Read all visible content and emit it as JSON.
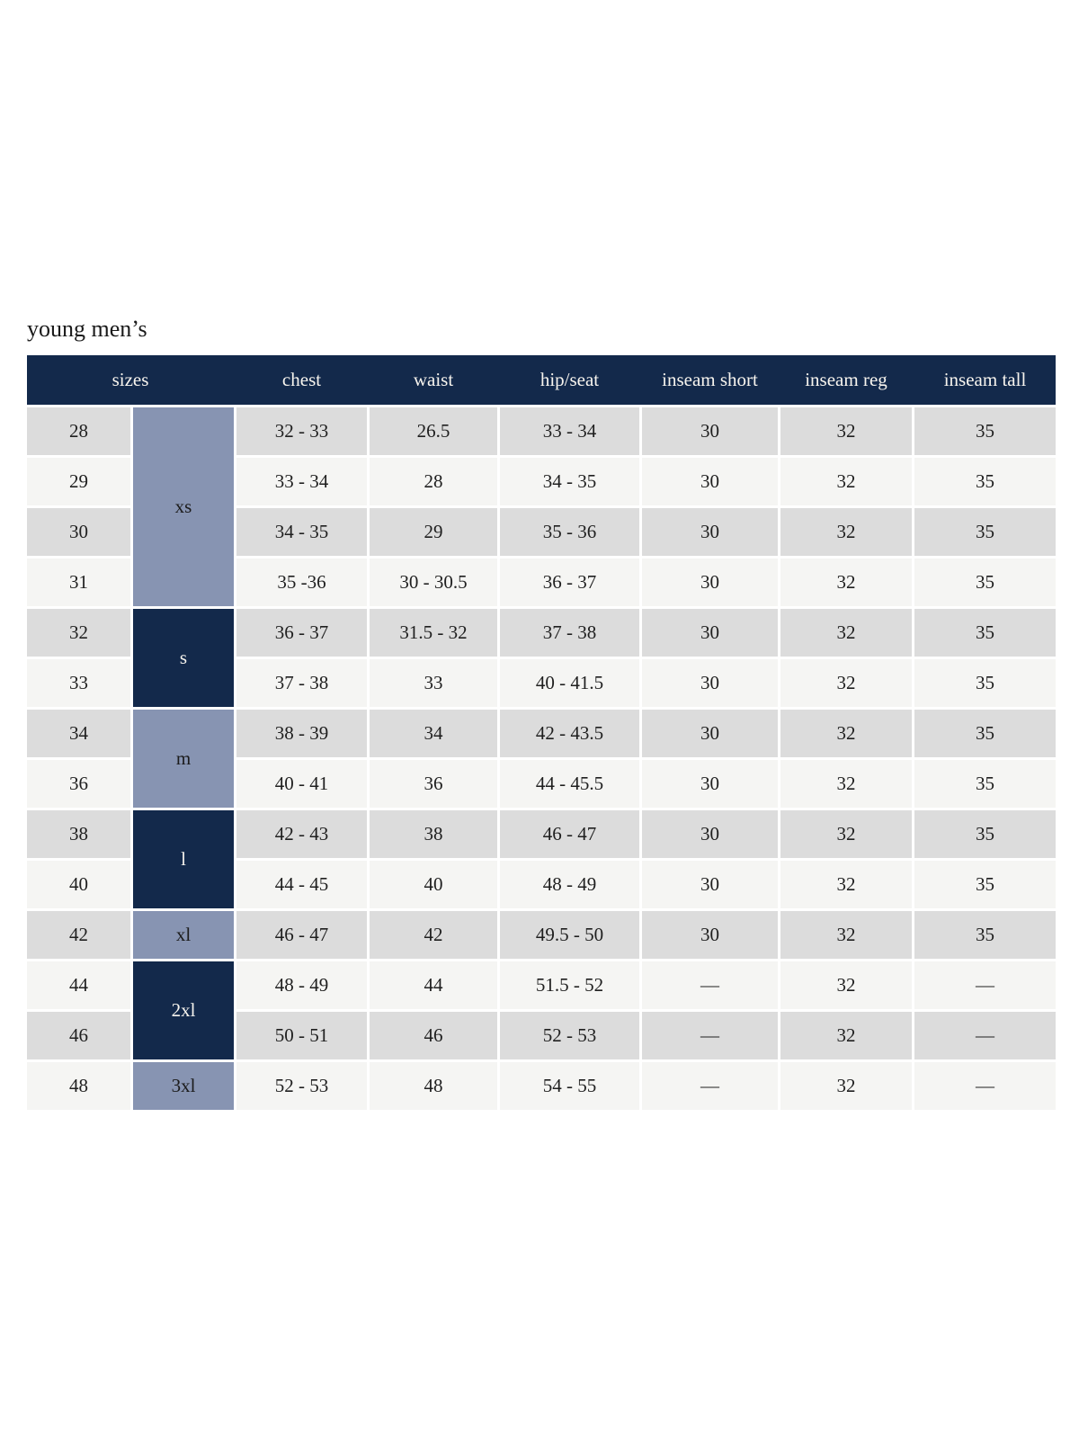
{
  "page": {
    "title": "young men’s"
  },
  "colors": {
    "header_navy": "#13294b",
    "group_dark_navy": "#13294b",
    "group_slate_blue": "#8794b2",
    "row_gray": "#dcdcdc",
    "row_offwhite": "#f5f5f3",
    "header_text": "#f7f4ee",
    "body_text": "#1f1f1f"
  },
  "table": {
    "header": {
      "sizes": "sizes",
      "chest": "chest",
      "waist": "waist",
      "hip_seat": "hip/seat",
      "inseam_short": "inseam short",
      "inseam_reg": "inseam reg",
      "inseam_tall": "inseam tall"
    },
    "size_groups": [
      {
        "label": "xs",
        "span": 4,
        "variant": "light"
      },
      {
        "label": "s",
        "span": 2,
        "variant": "dark"
      },
      {
        "label": "m",
        "span": 2,
        "variant": "light"
      },
      {
        "label": "l",
        "span": 2,
        "variant": "dark"
      },
      {
        "label": "xl",
        "span": 1,
        "variant": "light"
      },
      {
        "label": "2xl",
        "span": 2,
        "variant": "dark"
      },
      {
        "label": "3xl",
        "span": 1,
        "variant": "light"
      }
    ],
    "rows": [
      {
        "size": "28",
        "chest": "32 - 33",
        "waist": "26.5",
        "hip_seat": "33 - 34",
        "inseam_short": "30",
        "inseam_reg": "32",
        "inseam_tall": "35"
      },
      {
        "size": "29",
        "chest": "33 - 34",
        "waist": "28",
        "hip_seat": "34 - 35",
        "inseam_short": "30",
        "inseam_reg": "32",
        "inseam_tall": "35"
      },
      {
        "size": "30",
        "chest": "34 - 35",
        "waist": "29",
        "hip_seat": "35 - 36",
        "inseam_short": "30",
        "inseam_reg": "32",
        "inseam_tall": "35"
      },
      {
        "size": "31",
        "chest": "35 -36",
        "waist": "30 - 30.5",
        "hip_seat": "36 - 37",
        "inseam_short": "30",
        "inseam_reg": "32",
        "inseam_tall": "35"
      },
      {
        "size": "32",
        "chest": "36 - 37",
        "waist": "31.5 - 32",
        "hip_seat": "37 - 38",
        "inseam_short": "30",
        "inseam_reg": "32",
        "inseam_tall": "35"
      },
      {
        "size": "33",
        "chest": "37 - 38",
        "waist": "33",
        "hip_seat": "40 - 41.5",
        "inseam_short": "30",
        "inseam_reg": "32",
        "inseam_tall": "35"
      },
      {
        "size": "34",
        "chest": "38 - 39",
        "waist": "34",
        "hip_seat": "42 - 43.5",
        "inseam_short": "30",
        "inseam_reg": "32",
        "inseam_tall": "35"
      },
      {
        "size": "36",
        "chest": "40 - 41",
        "waist": "36",
        "hip_seat": "44 - 45.5",
        "inseam_short": "30",
        "inseam_reg": "32",
        "inseam_tall": "35"
      },
      {
        "size": "38",
        "chest": "42 - 43",
        "waist": "38",
        "hip_seat": "46 - 47",
        "inseam_short": "30",
        "inseam_reg": "32",
        "inseam_tall": "35"
      },
      {
        "size": "40",
        "chest": "44 - 45",
        "waist": "40",
        "hip_seat": "48 - 49",
        "inseam_short": "30",
        "inseam_reg": "32",
        "inseam_tall": "35"
      },
      {
        "size": "42",
        "chest": "46 - 47",
        "waist": "42",
        "hip_seat": "49.5 - 50",
        "inseam_short": "30",
        "inseam_reg": "32",
        "inseam_tall": "35"
      },
      {
        "size": "44",
        "chest": "48 - 49",
        "waist": "44",
        "hip_seat": "51.5 - 52",
        "inseam_short": "—",
        "inseam_reg": "32",
        "inseam_tall": "—"
      },
      {
        "size": "46",
        "chest": "50 - 51",
        "waist": "46",
        "hip_seat": "52 - 53",
        "inseam_short": "—",
        "inseam_reg": "32",
        "inseam_tall": "—"
      },
      {
        "size": "48",
        "chest": "52 - 53",
        "waist": "48",
        "hip_seat": "54 - 55",
        "inseam_short": "—",
        "inseam_reg": "32",
        "inseam_tall": "—"
      }
    ]
  }
}
